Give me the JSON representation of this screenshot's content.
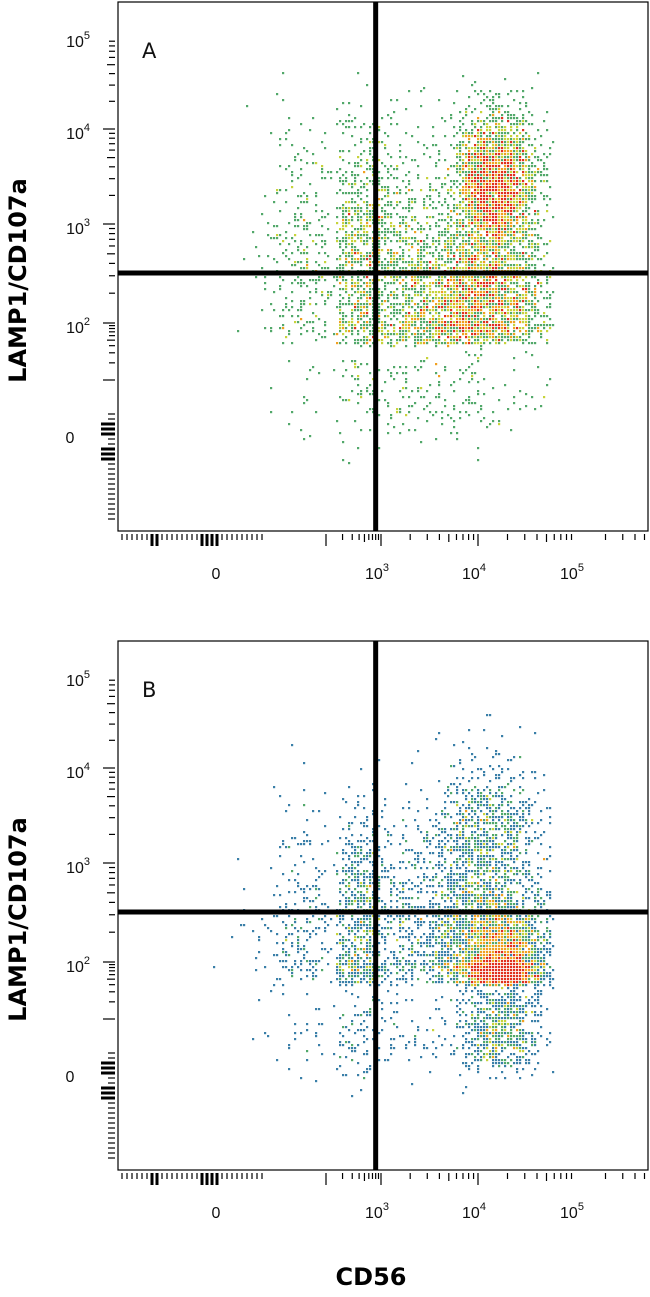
{
  "chart_data": [
    {
      "type": "scatter",
      "subtype": "flow-cytometry-density-dot-plot",
      "panel_label": "A",
      "ylabel": "LAMP1/CD107a",
      "x_scale": "biexponential",
      "y_scale": "biexponential",
      "x_tick_labels": [
        {
          "value": 0,
          "base": "0",
          "exp": ""
        },
        {
          "value": 1000,
          "base": "10",
          "exp": "3"
        },
        {
          "value": 10000,
          "base": "10",
          "exp": "4"
        },
        {
          "value": 100000,
          "base": "10",
          "exp": "5"
        }
      ],
      "y_tick_labels": [
        {
          "value": 0,
          "base": "0",
          "exp": ""
        },
        {
          "value": 100,
          "base": "10",
          "exp": "2"
        },
        {
          "value": 1000,
          "base": "10",
          "exp": "3"
        },
        {
          "value": 10000,
          "base": "10",
          "exp": "4"
        },
        {
          "value": 100000,
          "base": "10",
          "exp": "5"
        }
      ],
      "quadrant_gate": {
        "x": 800,
        "y": 320
      },
      "populations": [
        {
          "cx": 15000,
          "cy": 2500,
          "sx_decades": 0.22,
          "sy_decades": 0.38,
          "weight": 0.36
        },
        {
          "cx": 12000,
          "cy": 180,
          "sx_decades": 0.35,
          "sy_decades": 0.35,
          "weight": 0.26
        },
        {
          "cx": 4000,
          "cy": 150,
          "sx_decades": 0.45,
          "sy_decades": 0.45,
          "weight": 0.14
        },
        {
          "cx": 500,
          "cy": 400,
          "sx_decades": 0.6,
          "sy_decades": 0.7,
          "weight": 0.24
        }
      ],
      "color_scale": [
        "#2b3f8c",
        "#3a7fa8",
        "#52a86a",
        "#c7d33a",
        "#f0a020",
        "#e0301e"
      ]
    },
    {
      "type": "scatter",
      "subtype": "flow-cytometry-density-dot-plot",
      "panel_label": "B",
      "ylabel": "LAMP1/CD107a",
      "x_scale": "biexponential",
      "y_scale": "biexponential",
      "x_tick_labels": [
        {
          "value": 0,
          "base": "0",
          "exp": ""
        },
        {
          "value": 1000,
          "base": "10",
          "exp": "3"
        },
        {
          "value": 10000,
          "base": "10",
          "exp": "4"
        },
        {
          "value": 100000,
          "base": "10",
          "exp": "5"
        }
      ],
      "y_tick_labels": [
        {
          "value": 0,
          "base": "0",
          "exp": ""
        },
        {
          "value": 100,
          "base": "10",
          "exp": "2"
        },
        {
          "value": 1000,
          "base": "10",
          "exp": "3"
        },
        {
          "value": 10000,
          "base": "10",
          "exp": "4"
        },
        {
          "value": 100000,
          "base": "10",
          "exp": "5"
        }
      ],
      "quadrant_gate": {
        "x": 800,
        "y": 320
      },
      "populations": [
        {
          "cx": 18000,
          "cy": 70,
          "sx_decades": 0.2,
          "sy_decades": 0.3,
          "weight": 0.4
        },
        {
          "cx": 12000,
          "cy": 150,
          "sx_decades": 0.35,
          "sy_decades": 0.35,
          "weight": 0.22
        },
        {
          "cx": 12000,
          "cy": 1500,
          "sx_decades": 0.3,
          "sy_decades": 0.45,
          "weight": 0.16
        },
        {
          "cx": 500,
          "cy": 200,
          "sx_decades": 0.6,
          "sy_decades": 0.6,
          "weight": 0.22
        }
      ],
      "color_scale": [
        "#2b3f8c",
        "#3a7fa8",
        "#52a86a",
        "#c7d33a",
        "#f0a020",
        "#e0301e"
      ]
    }
  ],
  "xlabel": "CD56"
}
